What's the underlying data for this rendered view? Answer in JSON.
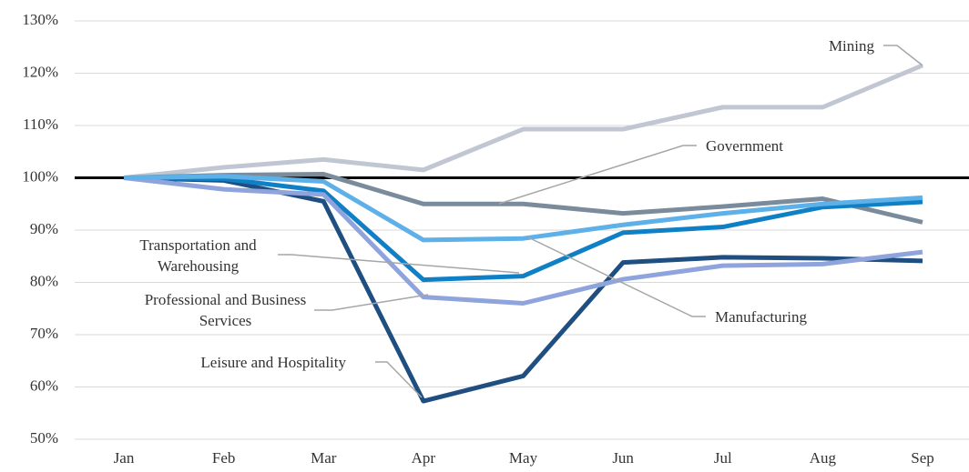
{
  "chart_data": {
    "type": "line",
    "categories": [
      "Jan",
      "Feb",
      "Mar",
      "Apr",
      "May",
      "Jun",
      "Jul",
      "Aug",
      "Sep"
    ],
    "ylim": [
      50,
      130
    ],
    "yticks": [
      {
        "value": 50,
        "label": "50%"
      },
      {
        "value": 60,
        "label": "60%"
      },
      {
        "value": 70,
        "label": "70%"
      },
      {
        "value": 80,
        "label": "80%"
      },
      {
        "value": 90,
        "label": "90%"
      },
      {
        "value": 100,
        "label": "100%"
      },
      {
        "value": 110,
        "label": "110%"
      },
      {
        "value": 120,
        "label": "120%"
      },
      {
        "value": 130,
        "label": "130%"
      }
    ],
    "grid": true,
    "reference_line": 100,
    "series": [
      {
        "name": "Mining",
        "color": "#c0c7d2",
        "values": [
          100,
          102,
          103.5,
          101.5,
          109.3,
          109.3,
          113.5,
          113.5,
          121.5
        ]
      },
      {
        "name": "Government",
        "color": "#7a8b9c",
        "values": [
          100,
          100.5,
          100.7,
          95,
          95,
          93.2,
          94.5,
          96,
          91.5
        ]
      },
      {
        "name": "Leisure and Hospitality",
        "color": "#1f4e80",
        "values": [
          100,
          99.5,
          95.5,
          57.3,
          62.1,
          83.8,
          84.8,
          84.6,
          84.1
        ]
      },
      {
        "name": "Transportation and Warehousing",
        "color": "#0f7fc6",
        "values": [
          100,
          99.8,
          97.5,
          80.5,
          81.2,
          89.5,
          90.6,
          94.4,
          95.4
        ]
      },
      {
        "name": "Professional and Business Services",
        "color": "#8fa3dc",
        "values": [
          100,
          97.8,
          96.8,
          77.2,
          76,
          80.6,
          83.2,
          83.5,
          85.8
        ]
      },
      {
        "name": "Manufacturing",
        "color": "#5db0e8",
        "values": [
          100,
          100.3,
          99.3,
          88.1,
          88.4,
          91,
          93.2,
          95,
          96.2
        ]
      }
    ]
  }
}
